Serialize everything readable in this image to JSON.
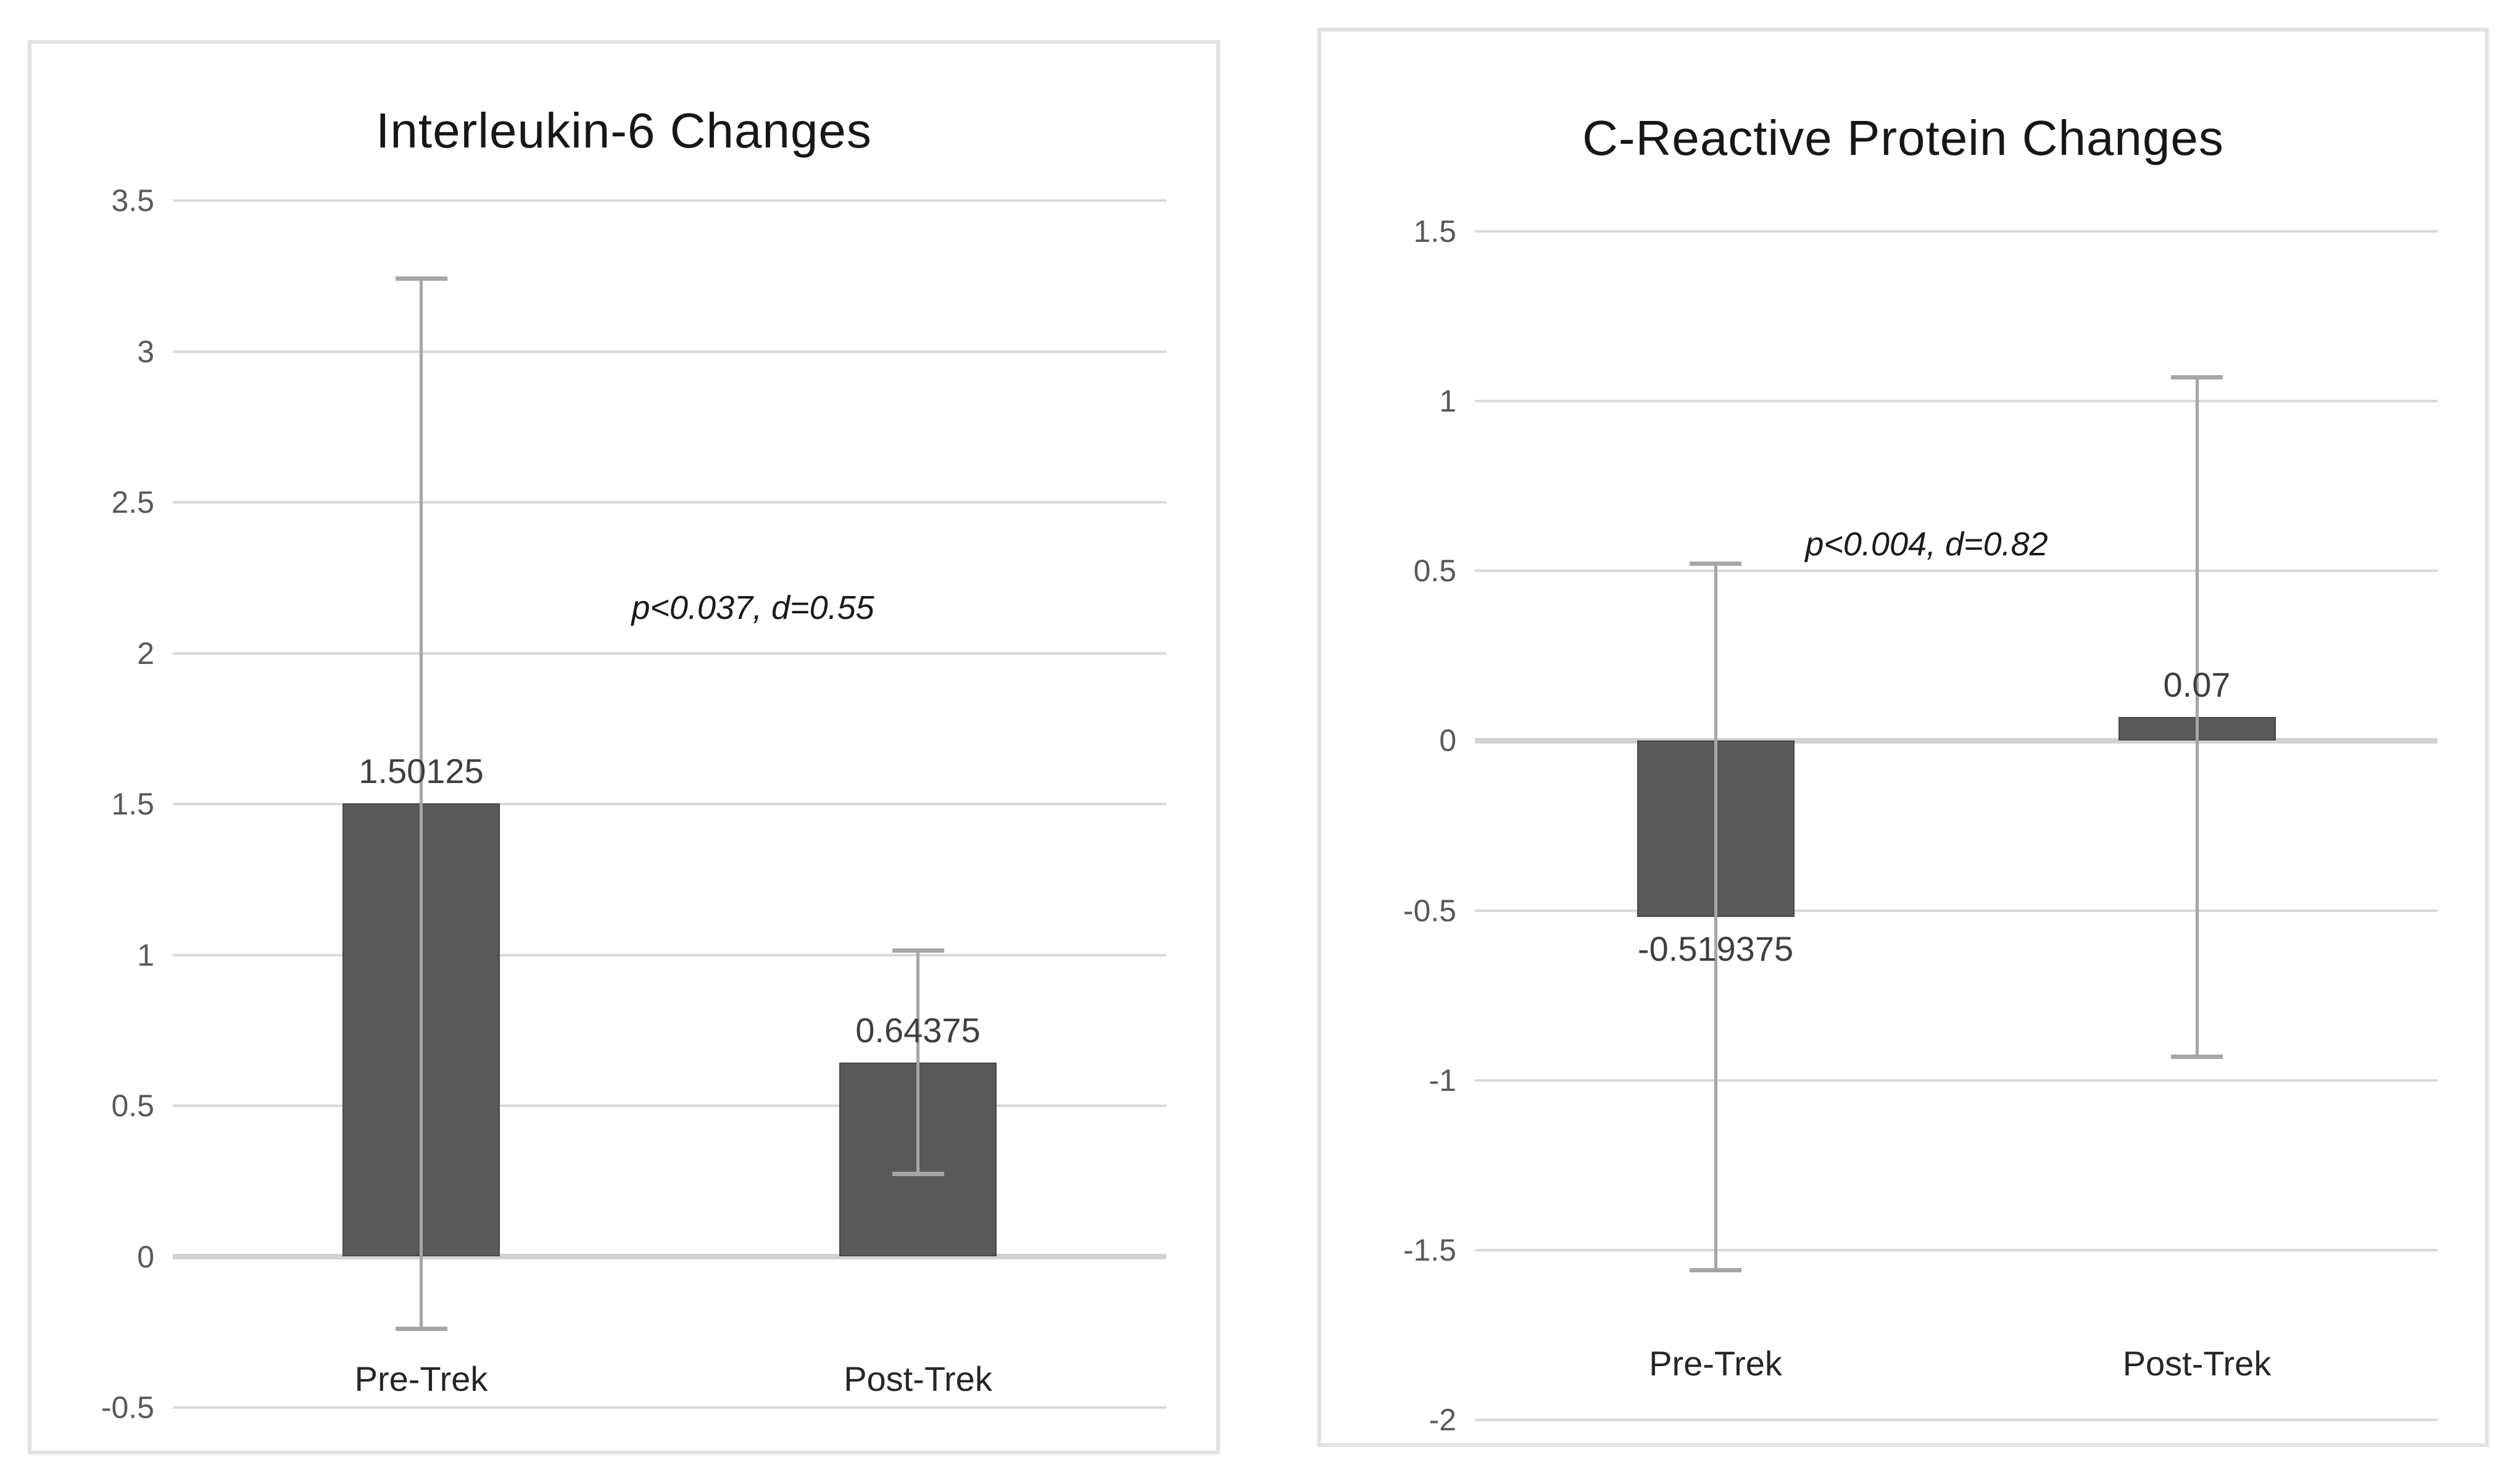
{
  "page": {
    "background_color": "#ffffff",
    "panel_border_color": "#e2e2e2"
  },
  "colors": {
    "bar_fill": "#595959",
    "bar_border": "#474747",
    "gridline": "#d9d9d9",
    "zero_line": "#d2d2d2",
    "error_bar": "#a6a6a6",
    "tick_label": "#595959",
    "category_label": "#262626",
    "data_label": "#3f3f3f",
    "title": "#171717"
  },
  "chart_data": [
    {
      "type": "bar",
      "title": "Interleukin-6 Changes",
      "annotation": "p<0.037, d=0.55",
      "categories": [
        "Pre-Trek",
        "Post-Trek"
      ],
      "values": [
        1.50125,
        0.64375
      ],
      "value_labels": [
        "1.50125",
        "0.64375"
      ],
      "error_bars": [
        {
          "plus": 1.74,
          "minus": 1.74
        },
        {
          "plus": 0.37,
          "minus": 0.37
        }
      ],
      "axis": {
        "min": -0.5,
        "max": 3.5,
        "step": 0.5,
        "tick_labels": [
          "3.5",
          "3",
          "2.5",
          "2",
          "1.5",
          "1",
          "0.5",
          "0",
          "-0.5"
        ]
      },
      "grid": "on",
      "legend": "none",
      "xlabel": "",
      "ylabel": ""
    },
    {
      "type": "bar",
      "title": "C-Reactive Protein Changes",
      "annotation": "p<0.004, d=0.82",
      "categories": [
        "Pre-Trek",
        "Post-Trek"
      ],
      "values": [
        -0.519375,
        0.07
      ],
      "value_labels": [
        "-0.519375",
        "0.07"
      ],
      "error_bars": [
        {
          "plus": 1.04,
          "minus": 1.04
        },
        {
          "plus": 1.0,
          "minus": 1.0
        }
      ],
      "axis": {
        "min": -2.0,
        "max": 1.5,
        "step": 0.5,
        "tick_labels": [
          "1.5",
          "1",
          "0.5",
          "0",
          "-0.5",
          "-1",
          "-1.5",
          "-2"
        ]
      },
      "grid": "on",
      "legend": "none",
      "xlabel": "",
      "ylabel": ""
    }
  ]
}
